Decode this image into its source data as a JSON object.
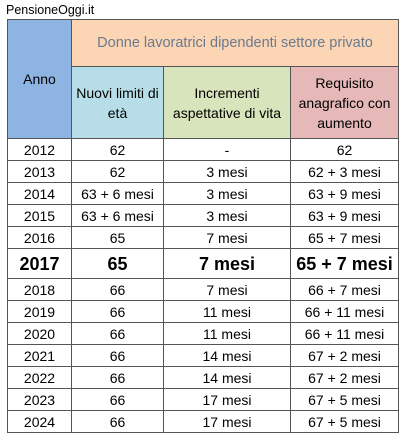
{
  "watermark": "PensioneOggi.it",
  "header": {
    "year": "Anno",
    "group_title": "Donne lavoratrici dipendenti settore privato",
    "new_limits": "Nuovi limiti di età",
    "increments": "Incrementi aspettative di vita",
    "requirement": "Requisito anagrafico con aumento"
  },
  "rows": [
    {
      "year": "2012",
      "limit": "62",
      "incr": "-",
      "req": "62",
      "highlight": false
    },
    {
      "year": "2013",
      "limit": "62",
      "incr": "3 mesi",
      "req": "62 + 3 mesi",
      "highlight": false
    },
    {
      "year": "2014",
      "limit": "63 + 6 mesi",
      "incr": "3 mesi",
      "req": "63 + 9 mesi",
      "highlight": false
    },
    {
      "year": "2015",
      "limit": "63 + 6 mesi",
      "incr": "3 mesi",
      "req": "63 + 9 mesi",
      "highlight": false
    },
    {
      "year": "2016",
      "limit": "65",
      "incr": "7 mesi",
      "req": "65 + 7 mesi",
      "highlight": false
    },
    {
      "year": "2017",
      "limit": "65",
      "incr": "7 mesi",
      "req": "65 + 7 mesi",
      "highlight": true
    },
    {
      "year": "2018",
      "limit": "66",
      "incr": "7 mesi",
      "req": "66 + 7 mesi",
      "highlight": false
    },
    {
      "year": "2019",
      "limit": "66",
      "incr": "11 mesi",
      "req": "66 + 11 mesi",
      "highlight": false
    },
    {
      "year": "2020",
      "limit": "66",
      "incr": "11 mesi",
      "req": "66 + 11 mesi",
      "highlight": false
    },
    {
      "year": "2021",
      "limit": "66",
      "incr": "14 mesi",
      "req": "67 + 2 mesi",
      "highlight": false
    },
    {
      "year": "2022",
      "limit": "66",
      "incr": "14 mesi",
      "req": "67 + 2 mesi",
      "highlight": false
    },
    {
      "year": "2023",
      "limit": "66",
      "incr": "17 mesi",
      "req": "67 + 5 mesi",
      "highlight": false
    },
    {
      "year": "2024",
      "limit": "66",
      "incr": "17 mesi",
      "req": "67 + 5 mesi",
      "highlight": false
    }
  ],
  "colors": {
    "year_header": "#8db4e2",
    "title_header": "#fcd5b4",
    "title_text": "#6b7a8f",
    "limits_header": "#b7dee8",
    "increments_header": "#d8e4bc",
    "requirement_header": "#e6b8b7"
  }
}
